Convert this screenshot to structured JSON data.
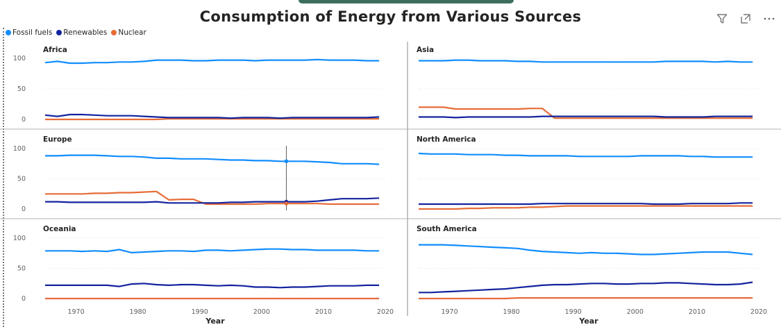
{
  "title": "Consumption of Energy from Various Sources",
  "header_icons": [
    "filter-icon",
    "focus-mode-icon",
    "more-options-icon"
  ],
  "legend": [
    {
      "label": "Fossil fuels",
      "color": "#118DFF"
    },
    {
      "label": "Renewables",
      "color": "#12239E"
    },
    {
      "label": "Nuclear",
      "color": "#E66C37"
    }
  ],
  "xlabel": "Year",
  "tooltip_marker": {
    "panel": "Europe",
    "x": 2004
  },
  "chart_data": {
    "type": "line",
    "xlim": [
      1965,
      2020
    ],
    "ylim": [
      0,
      100
    ],
    "x_ticks": [
      1970,
      1980,
      1990,
      2000,
      2010,
      2020
    ],
    "y_ticks": [
      0,
      50,
      100
    ],
    "grid": true,
    "legend_position": "top-left",
    "x": [
      1965,
      1967,
      1969,
      1971,
      1973,
      1975,
      1977,
      1979,
      1981,
      1983,
      1985,
      1987,
      1989,
      1991,
      1993,
      1995,
      1997,
      1999,
      2001,
      2003,
      2005,
      2007,
      2009,
      2011,
      2013,
      2015,
      2017,
      2019
    ],
    "panels": [
      {
        "name": "Africa",
        "series": [
          {
            "name": "Fossil fuels",
            "values": [
              93,
              95,
              92,
              92,
              93,
              93,
              94,
              94,
              95,
              97,
              97,
              97,
              96,
              96,
              97,
              97,
              97,
              96,
              97,
              97,
              97,
              97,
              98,
              97,
              97,
              97,
              96,
              96
            ]
          },
          {
            "name": "Renewables",
            "values": [
              7,
              5,
              8,
              8,
              7,
              6,
              6,
              6,
              5,
              4,
              3,
              3,
              3,
              3,
              3,
              2,
              3,
              3,
              3,
              2,
              3,
              3,
              3,
              3,
              3,
              3,
              3,
              4
            ]
          },
          {
            "name": "Nuclear",
            "values": [
              0,
              0,
              0,
              0,
              0,
              0,
              0,
              0,
              0,
              0,
              1,
              1,
              1,
              1,
              1,
              1,
              1,
              1,
              1,
              1,
              1,
              1,
              1,
              1,
              1,
              1,
              1,
              1
            ]
          }
        ]
      },
      {
        "name": "Asia",
        "series": [
          {
            "name": "Fossil fuels",
            "values": [
              96,
              96,
              96,
              97,
              97,
              96,
              96,
              96,
              95,
              95,
              94,
              94,
              94,
              94,
              94,
              94,
              94,
              94,
              94,
              94,
              95,
              95,
              95,
              95,
              94,
              95,
              94,
              94
            ]
          },
          {
            "name": "Renewables",
            "values": [
              4,
              4,
              4,
              3,
              4,
              4,
              4,
              4,
              4,
              4,
              5,
              5,
              5,
              5,
              5,
              5,
              5,
              5,
              5,
              5,
              4,
              4,
              4,
              4,
              5,
              5,
              5,
              5
            ]
          },
          {
            "name": "Nuclear",
            "values": [
              20,
              20,
              20,
              17,
              17,
              17,
              17,
              17,
              17,
              18,
              18,
              2,
              2,
              2,
              2,
              2,
              2,
              2,
              2,
              2,
              2,
              2,
              2,
              2,
              2,
              2,
              2,
              2
            ]
          }
        ]
      },
      {
        "name": "Europe",
        "series": [
          {
            "name": "Fossil fuels",
            "values": [
              88,
              88,
              89,
              89,
              89,
              88,
              87,
              87,
              86,
              84,
              84,
              83,
              83,
              83,
              82,
              81,
              81,
              80,
              80,
              79,
              79,
              79,
              78,
              77,
              75,
              75,
              75,
              74
            ]
          },
          {
            "name": "Renewables",
            "values": [
              12,
              12,
              11,
              11,
              11,
              11,
              11,
              11,
              11,
              12,
              10,
              10,
              10,
              10,
              10,
              11,
              11,
              12,
              12,
              12,
              12,
              12,
              13,
              15,
              17,
              17,
              17,
              18
            ]
          },
          {
            "name": "Nuclear",
            "values": [
              25,
              25,
              25,
              25,
              26,
              26,
              27,
              27,
              28,
              29,
              15,
              16,
              16,
              8,
              8,
              8,
              8,
              8,
              9,
              9,
              9,
              9,
              9,
              8,
              8,
              8,
              8,
              8
            ]
          }
        ]
      },
      {
        "name": "North America",
        "series": [
          {
            "name": "Fossil fuels",
            "values": [
              92,
              91,
              91,
              91,
              90,
              90,
              90,
              89,
              89,
              88,
              88,
              88,
              88,
              87,
              87,
              87,
              87,
              87,
              88,
              88,
              88,
              88,
              87,
              87,
              86,
              86,
              86,
              86
            ]
          },
          {
            "name": "Renewables",
            "values": [
              8,
              8,
              8,
              8,
              8,
              8,
              8,
              8,
              8,
              8,
              9,
              9,
              9,
              9,
              9,
              9,
              9,
              9,
              9,
              8,
              8,
              8,
              9,
              9,
              9,
              9,
              10,
              10
            ]
          },
          {
            "name": "Nuclear",
            "values": [
              0,
              0,
              0,
              0,
              1,
              1,
              2,
              2,
              2,
              3,
              3,
              4,
              5,
              5,
              5,
              5,
              5,
              5,
              5,
              5,
              5,
              5,
              5,
              5,
              5,
              5,
              5,
              5
            ]
          }
        ]
      },
      {
        "name": "Oceania",
        "series": [
          {
            "name": "Fossil fuels",
            "values": [
              79,
              79,
              79,
              78,
              79,
              78,
              81,
              76,
              77,
              78,
              79,
              79,
              78,
              80,
              80,
              79,
              80,
              81,
              82,
              82,
              81,
              81,
              80,
              80,
              80,
              80,
              79,
              79
            ]
          },
          {
            "name": "Renewables",
            "values": [
              22,
              22,
              22,
              22,
              22,
              22,
              20,
              24,
              25,
              23,
              22,
              23,
              23,
              22,
              21,
              22,
              21,
              19,
              19,
              18,
              19,
              19,
              20,
              21,
              21,
              21,
              22,
              22
            ]
          },
          {
            "name": "Nuclear",
            "values": [
              0,
              0,
              0,
              0,
              0,
              0,
              0,
              0,
              0,
              0,
              0,
              0,
              0,
              0,
              0,
              0,
              0,
              0,
              0,
              0,
              0,
              0,
              0,
              0,
              0,
              0,
              0,
              0
            ]
          }
        ]
      },
      {
        "name": "South America",
        "series": [
          {
            "name": "Fossil fuels",
            "values": [
              89,
              89,
              89,
              88,
              87,
              86,
              85,
              84,
              83,
              80,
              78,
              77,
              76,
              75,
              76,
              75,
              75,
              74,
              73,
              73,
              74,
              75,
              76,
              77,
              77,
              77,
              75,
              73
            ]
          },
          {
            "name": "Renewables",
            "values": [
              10,
              10,
              11,
              12,
              13,
              14,
              15,
              16,
              18,
              20,
              22,
              23,
              23,
              24,
              25,
              25,
              24,
              24,
              25,
              25,
              26,
              26,
              25,
              24,
              23,
              23,
              24,
              27
            ]
          },
          {
            "name": "Nuclear",
            "values": [
              0,
              0,
              0,
              0,
              0,
              0,
              0,
              0,
              1,
              1,
              1,
              1,
              1,
              1,
              1,
              1,
              1,
              1,
              1,
              1,
              1,
              1,
              1,
              1,
              1,
              1,
              1,
              1
            ]
          }
        ]
      }
    ]
  }
}
